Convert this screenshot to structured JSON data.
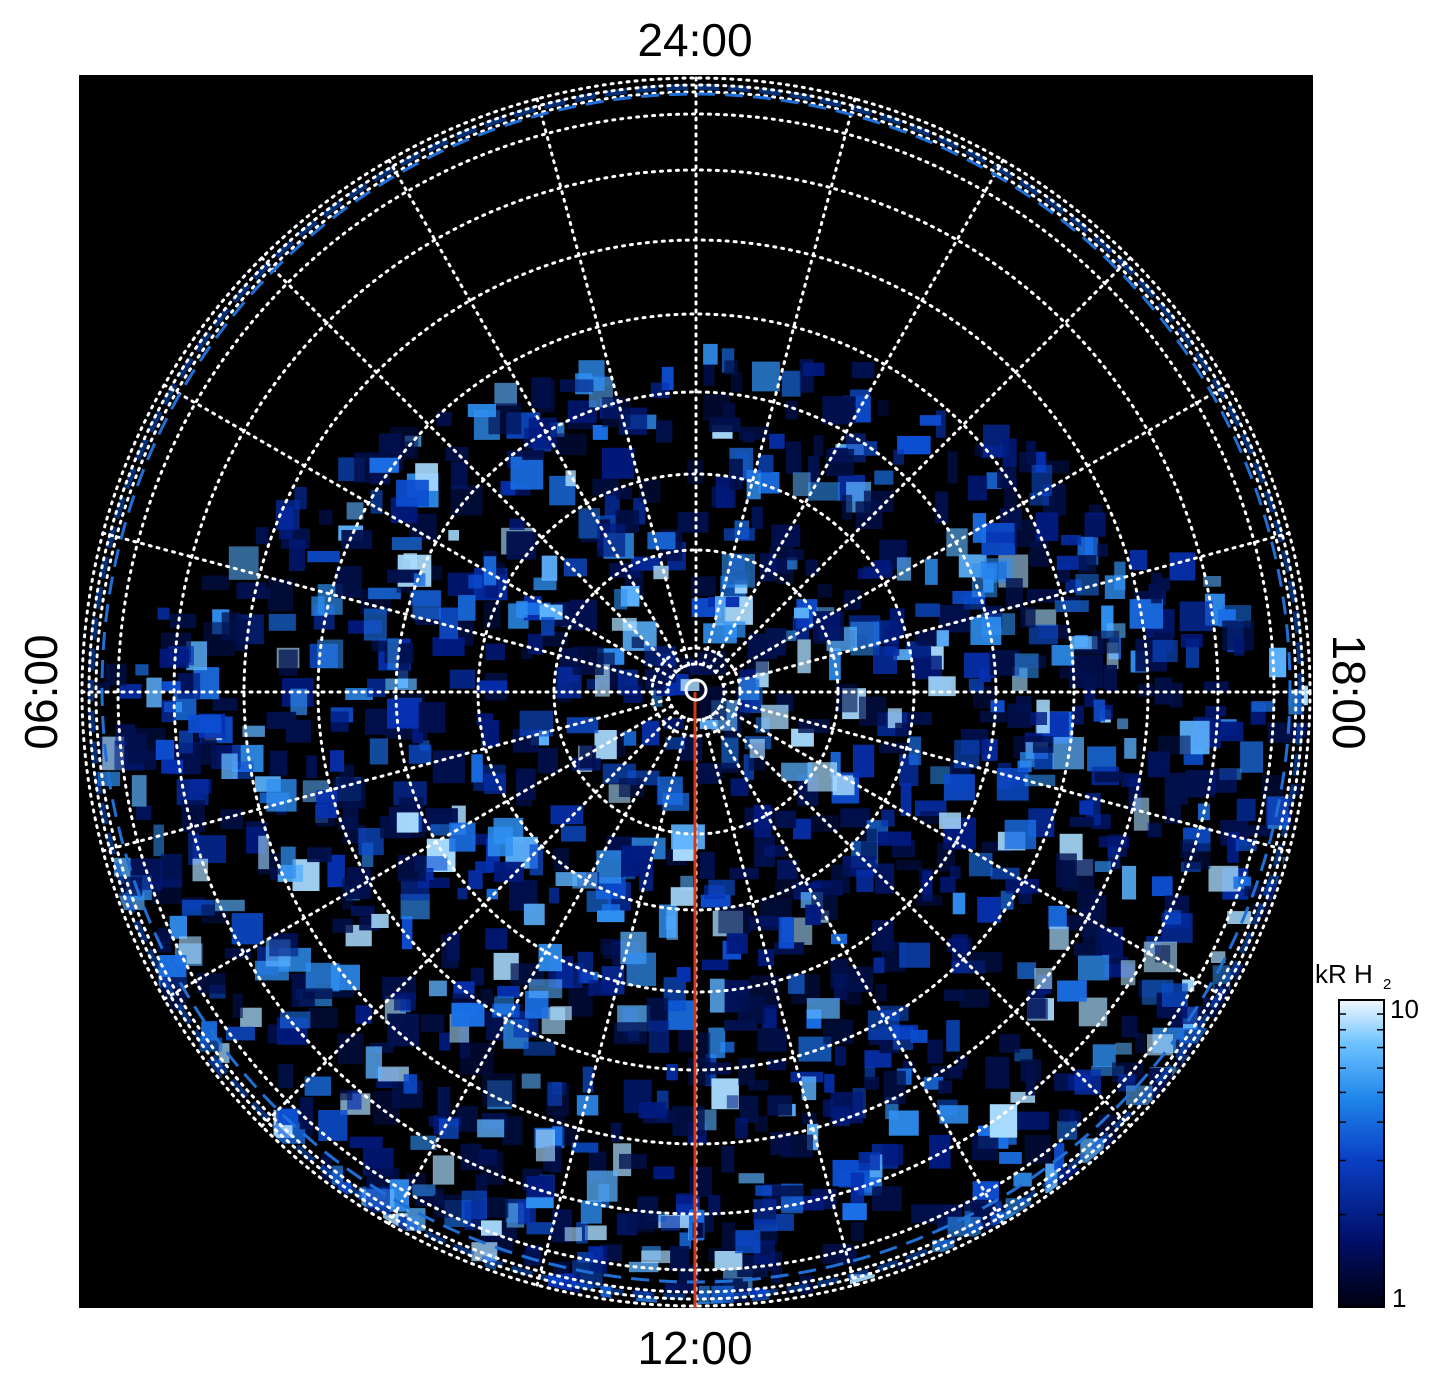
{
  "plot": {
    "local_time_labels": {
      "top": "24:00",
      "bottom": "12:00",
      "left": "06:00",
      "right": "18:00"
    },
    "colors": {
      "background": "#000000",
      "grid": "#ffffff",
      "dashed_boundary": "#1f6fd6",
      "meridian_line": "#d03a1a"
    }
  },
  "colorbar": {
    "title": "kR H",
    "title_subscript": "2",
    "max_label": "10",
    "min_label": "1",
    "scale": "log",
    "color_stops": [
      "#000010",
      "#00106a",
      "#0a3fc4",
      "#1f86ea",
      "#6fc3ff",
      "#f2f9ff"
    ]
  }
}
